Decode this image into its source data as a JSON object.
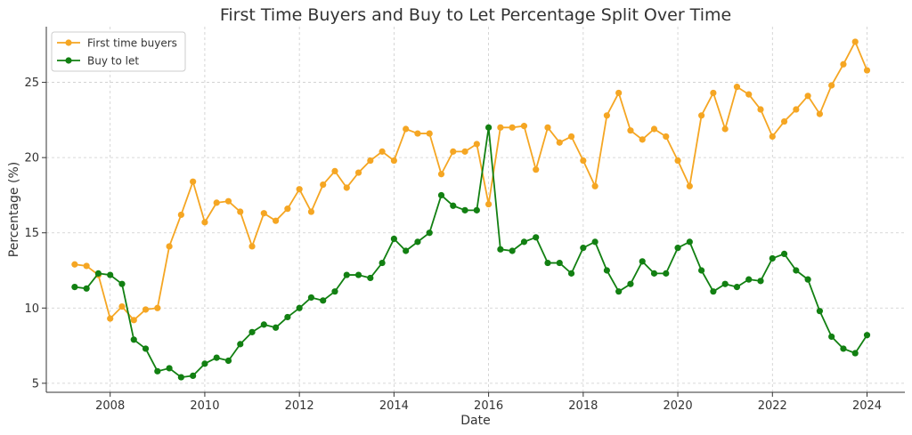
{
  "chart_data": {
    "type": "line",
    "title": "First Time Buyers and Buy to Let Percentage Split Over Time",
    "xlabel": "Date",
    "ylabel": "Percentage (%)",
    "xlim": [
      2006.65,
      2024.8
    ],
    "ylim": [
      4.4,
      28.7
    ],
    "xticks": [
      2008,
      2010,
      2012,
      2014,
      2016,
      2018,
      2020,
      2022,
      2024
    ],
    "yticks": [
      5,
      10,
      15,
      20,
      25
    ],
    "grid": true,
    "legend_position": "top-left",
    "x": [
      2007.25,
      2007.5,
      2007.75,
      2008.0,
      2008.25,
      2008.5,
      2008.75,
      2009.0,
      2009.25,
      2009.5,
      2009.75,
      2010.0,
      2010.25,
      2010.5,
      2010.75,
      2011.0,
      2011.25,
      2011.5,
      2011.75,
      2012.0,
      2012.25,
      2012.5,
      2012.75,
      2013.0,
      2013.25,
      2013.5,
      2013.75,
      2014.0,
      2014.25,
      2014.5,
      2014.75,
      2015.0,
      2015.25,
      2015.5,
      2015.75,
      2016.0,
      2016.25,
      2016.5,
      2016.75,
      2017.0,
      2017.25,
      2017.5,
      2017.75,
      2018.0,
      2018.25,
      2018.5,
      2018.75,
      2019.0,
      2019.25,
      2019.5,
      2019.75,
      2020.0,
      2020.25,
      2020.5,
      2020.75,
      2021.0,
      2021.25,
      2021.5,
      2021.75,
      2022.0,
      2022.25,
      2022.5,
      2022.75,
      2023.0,
      2023.25,
      2023.5,
      2023.75,
      2024.0
    ],
    "series": [
      {
        "name": "First time buyers",
        "color": "#f5a623",
        "values": [
          12.9,
          12.8,
          12.2,
          9.3,
          10.1,
          9.2,
          9.9,
          10.0,
          14.1,
          16.2,
          18.4,
          15.7,
          17.0,
          17.1,
          16.4,
          14.1,
          16.3,
          15.8,
          16.6,
          17.9,
          16.4,
          18.2,
          19.1,
          18.0,
          19.0,
          19.8,
          20.4,
          19.8,
          21.9,
          21.6,
          21.6,
          18.9,
          20.4,
          20.4,
          20.9,
          16.9,
          22.0,
          22.0,
          22.1,
          19.2,
          22.0,
          21.0,
          21.4,
          19.8,
          18.1,
          22.8,
          24.3,
          21.8,
          21.2,
          21.9,
          21.4,
          19.8,
          18.1,
          22.8,
          24.3,
          21.9,
          24.7,
          24.2,
          23.2,
          21.4,
          22.4,
          23.2,
          24.1,
          22.9,
          24.8,
          26.2,
          27.7,
          25.8
        ]
      },
      {
        "name": "Buy to let",
        "color": "#128012",
        "values": [
          11.4,
          11.3,
          12.3,
          12.2,
          11.6,
          7.9,
          7.3,
          5.8,
          6.0,
          5.4,
          5.5,
          6.3,
          6.7,
          6.5,
          7.6,
          8.4,
          8.9,
          8.7,
          9.4,
          10.0,
          10.7,
          10.5,
          11.1,
          12.2,
          12.2,
          12.0,
          13.0,
          14.6,
          13.8,
          14.4,
          15.0,
          17.5,
          16.8,
          16.5,
          16.5,
          22.0,
          13.9,
          13.8,
          14.4,
          14.7,
          13.0,
          13.0,
          12.3,
          14.0,
          14.4,
          12.5,
          11.1,
          11.6,
          13.1,
          12.3,
          12.3,
          14.0,
          14.4,
          12.5,
          11.1,
          11.6,
          11.4,
          11.9,
          11.8,
          13.3,
          13.6,
          12.5,
          11.9,
          9.8,
          8.1,
          7.3,
          7.0,
          8.2
        ]
      }
    ]
  }
}
